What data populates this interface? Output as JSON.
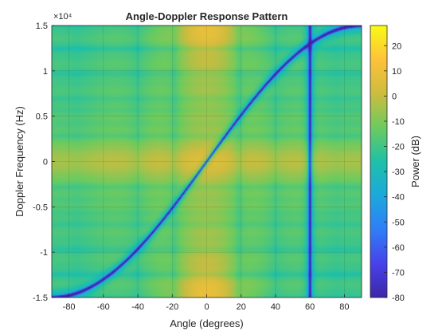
{
  "chart_data": {
    "type": "heatmap",
    "title": "Angle-Doppler Response Pattern",
    "xlabel": "Angle (degrees)",
    "ylabel": "Doppler Frequency (Hz)",
    "colorbar_label": "Power (dB)",
    "xlim": [
      -90,
      90
    ],
    "ylim": [
      -15000,
      15000
    ],
    "y_exponent_label": "×10⁴",
    "x_ticks": [
      -80,
      -60,
      -40,
      -20,
      0,
      20,
      40,
      60,
      80
    ],
    "x_tick_labels": [
      "-80",
      "-60",
      "-40",
      "-20",
      "0",
      "20",
      "40",
      "60",
      "80"
    ],
    "y_ticks": [
      -15000,
      -10000,
      -5000,
      0,
      5000,
      10000,
      15000
    ],
    "y_tick_labels": [
      "-1.5",
      "-1",
      "-0.5",
      "0",
      "0.5",
      "1",
      "1.5"
    ],
    "clim": [
      -80,
      28
    ],
    "colorbar_ticks": [
      20,
      10,
      0,
      -10,
      -20,
      -30,
      -40,
      -50,
      -60,
      -70,
      -80
    ],
    "colorbar_tick_labels": [
      "20",
      "10",
      "0",
      "-10",
      "-20",
      "-30",
      "-40",
      "-50",
      "-60",
      "-70",
      "-80"
    ],
    "colormap": "parula",
    "grid": true,
    "features": {
      "clutter_ridge": "sine-shaped null ridge from (-90, -15000) to (90, 15000)",
      "null_angle_deg": 60,
      "peak_power_db": 28,
      "peak_location": {
        "angle": 0,
        "doppler": 15000
      }
    }
  }
}
